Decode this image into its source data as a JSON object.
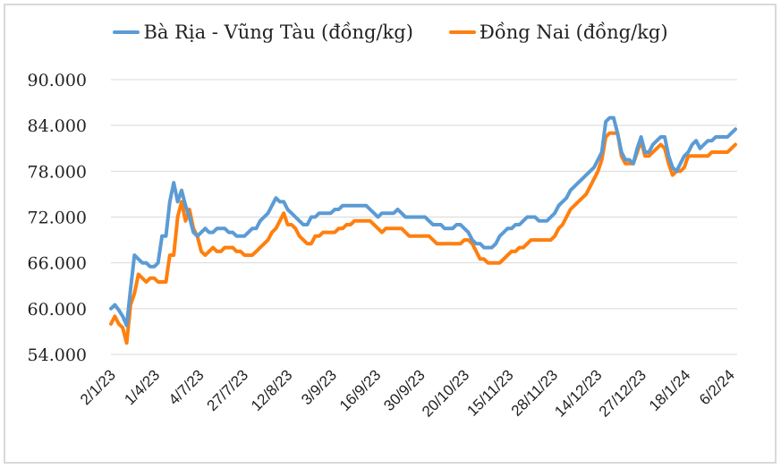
{
  "legend": [
    {
      "label": "Bà Rịa - Vũng Tàu (đồng/kg)",
      "color": "#5b9bd5"
    },
    {
      "label": "Đồng Nai (đồng/kg)",
      "color": "#ff7f0e"
    }
  ],
  "chart_data": {
    "type": "line",
    "title": "",
    "xlabel": "",
    "ylabel": "",
    "ylim": [
      54000,
      90000
    ],
    "yticks": [
      "90.000",
      "84.000",
      "78.000",
      "72.000",
      "66.000",
      "60.000",
      "54.000"
    ],
    "grid": true,
    "legend_position": "top",
    "x_tick_labels": [
      "2/1/23",
      "1/4/23",
      "4/7/23",
      "27/7/23",
      "12/8/23",
      "3/9/23",
      "16/9/23",
      "30/9/23",
      "20/10/23",
      "15/11/23",
      "28/11/23",
      "14/12/23",
      "27/12/23",
      "18/1/24",
      "6/2/24"
    ],
    "series": [
      {
        "name": "Bà Rịa - Vũng Tàu (đồng/kg)",
        "color": "#5b9bd5",
        "values": [
          60000,
          60500,
          59800,
          59000,
          57800,
          62500,
          67000,
          66500,
          66000,
          66000,
          65500,
          65500,
          66000,
          69500,
          69500,
          74000,
          76500,
          74000,
          75500,
          73500,
          72000,
          70000,
          69500,
          70000,
          70500,
          70000,
          70000,
          70500,
          70500,
          70500,
          70000,
          70000,
          69500,
          69500,
          69500,
          70000,
          70500,
          70500,
          71500,
          72000,
          72500,
          73500,
          74500,
          74000,
          74000,
          73000,
          72500,
          72000,
          71500,
          71000,
          71000,
          72000,
          72000,
          72500,
          72500,
          72500,
          72500,
          73000,
          73000,
          73500,
          73500,
          73500,
          73500,
          73500,
          73500,
          73500,
          73000,
          72500,
          72000,
          72500,
          72500,
          72500,
          72500,
          73000,
          72500,
          72000,
          72000,
          72000,
          72000,
          72000,
          72000,
          71500,
          71000,
          71000,
          71000,
          70500,
          70500,
          70500,
          71000,
          71000,
          70500,
          70000,
          69000,
          68500,
          68500,
          68000,
          68000,
          68000,
          68500,
          69500,
          70000,
          70500,
          70500,
          71000,
          71000,
          71500,
          72000,
          72000,
          72000,
          71500,
          71500,
          71500,
          72000,
          72500,
          73500,
          74000,
          74500,
          75500,
          76000,
          76500,
          77000,
          77500,
          78000,
          78500,
          79500,
          80500,
          84500,
          85000,
          85000,
          83000,
          80500,
          79500,
          79500,
          79000,
          81000,
          82500,
          80500,
          80500,
          81500,
          82000,
          82500,
          82500,
          80000,
          78500,
          78000,
          79000,
          80000,
          80500,
          81500,
          82000,
          81000,
          81500,
          82000,
          82000,
          82500,
          82500,
          82500,
          82500,
          83000,
          83500
        ]
      },
      {
        "name": "Đồng Nai (đồng/kg)",
        "color": "#ff7f0e",
        "values": [
          58000,
          59000,
          58000,
          57500,
          55500,
          60500,
          62000,
          64500,
          64000,
          63500,
          64000,
          64000,
          63500,
          63500,
          63500,
          67000,
          67000,
          72000,
          74000,
          71500,
          73000,
          70500,
          69500,
          67500,
          67000,
          67500,
          68000,
          67500,
          67500,
          68000,
          68000,
          68000,
          67500,
          67500,
          67000,
          67000,
          67000,
          67500,
          68000,
          68500,
          69000,
          70000,
          70500,
          71500,
          72500,
          71000,
          71000,
          70500,
          69500,
          69000,
          68500,
          68500,
          69500,
          69500,
          70000,
          70000,
          70000,
          70000,
          70500,
          70500,
          71000,
          71000,
          71500,
          71500,
          71500,
          71500,
          71500,
          71000,
          70500,
          70000,
          70500,
          70500,
          70500,
          70500,
          70500,
          70000,
          69500,
          69500,
          69500,
          69500,
          69500,
          69500,
          69000,
          68500,
          68500,
          68500,
          68500,
          68500,
          68500,
          68500,
          69000,
          69000,
          68500,
          67500,
          66500,
          66500,
          66000,
          66000,
          66000,
          66000,
          66500,
          67000,
          67500,
          67500,
          68000,
          68000,
          68500,
          69000,
          69000,
          69000,
          69000,
          69000,
          69000,
          69500,
          70500,
          71000,
          72000,
          73000,
          73500,
          74000,
          74500,
          75000,
          76000,
          77000,
          78000,
          79500,
          82500,
          83000,
          83000,
          83000,
          80000,
          79000,
          79000,
          79000,
          80500,
          82000,
          80000,
          80000,
          80500,
          81000,
          81500,
          81000,
          79000,
          77500,
          78000,
          78000,
          78500,
          80000,
          80000,
          80000,
          80000,
          80000,
          80000,
          80500,
          80500,
          80500,
          80500,
          80500,
          81000,
          81500
        ]
      }
    ]
  }
}
